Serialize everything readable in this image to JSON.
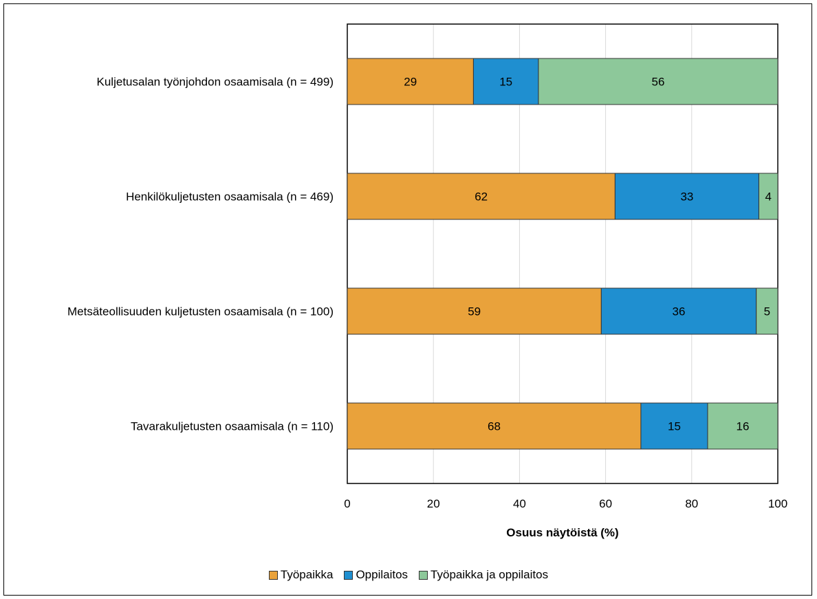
{
  "chart_data": {
    "type": "bar",
    "orientation": "horizontal",
    "stacked": true,
    "categories": [
      "Kuljetusalan työnjohdon osaamisala (n = 499)",
      "Henkilökuljetusten osaamisala (n = 469)",
      "Metsäteollisuuden kuljetusten osaamisala (n = 100)",
      "Tavarakuljetusten osaamisala (n = 110)"
    ],
    "series": [
      {
        "name": "Työpaikka",
        "color": "#E9A23B",
        "values": [
          29.3,
          62.2,
          59,
          68.2
        ],
        "labels": [
          "29",
          "62",
          "59",
          "68"
        ]
      },
      {
        "name": "Oppilaitos",
        "color": "#1F8FD0",
        "values": [
          15.1,
          33.4,
          36,
          15.5
        ],
        "labels": [
          "15",
          "33",
          "36",
          "15"
        ]
      },
      {
        "name": "Työpaikka ja oppilaitos",
        "color": "#8DC89A",
        "values": [
          55.6,
          4.4,
          5,
          16.3
        ],
        "labels": [
          "56",
          "4",
          "5",
          "16"
        ]
      }
    ],
    "xlabel": "Osuus näytöistä (%)",
    "ylabel": "",
    "xlim": [
      0,
      100
    ],
    "xticks": [
      "0",
      "20",
      "40",
      "60",
      "80",
      "100"
    ],
    "grid": "vertical",
    "legend_position": "bottom"
  }
}
